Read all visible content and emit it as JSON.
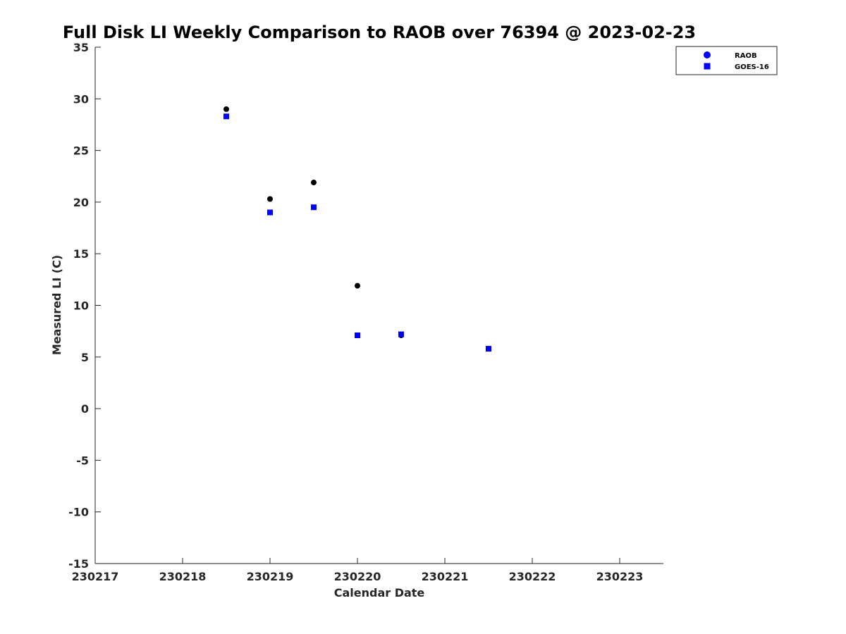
{
  "chart_data": {
    "type": "scatter",
    "title": "Full Disk LI Weekly Comparison to RAOB over 76394 @ 2023-02-23",
    "xlabel": "Calendar Date",
    "ylabel": "Measured LI (C)",
    "xlim": [
      230217,
      230223.5
    ],
    "ylim": [
      -15,
      35
    ],
    "x_ticks": [
      230217,
      230218,
      230219,
      230220,
      230221,
      230222,
      230223
    ],
    "x_tick_labels": [
      "230217",
      "230218",
      "230219",
      "230220",
      "230221",
      "230222",
      "230223"
    ],
    "y_ticks": [
      35,
      30,
      25,
      20,
      15,
      10,
      5,
      0,
      -5,
      -10,
      -15
    ],
    "y_tick_labels": [
      "35",
      "30",
      "25",
      "20",
      "15",
      "10",
      "5",
      "0",
      "-5",
      "-10",
      "-15"
    ],
    "grid": false,
    "legend_position": "top-right",
    "legend": [
      "RAOB",
      "GOES-16"
    ],
    "series": [
      {
        "name": "RAOB",
        "marker": "circle",
        "plot_color": "#000000",
        "legend_color": "#0000ff",
        "points": [
          {
            "x": 230218.5,
            "y": 29.0
          },
          {
            "x": 230219.0,
            "y": 20.3
          },
          {
            "x": 230219.5,
            "y": 21.9
          },
          {
            "x": 230220.0,
            "y": 11.9
          },
          {
            "x": 230220.5,
            "y": 7.1
          },
          {
            "x": 230221.5,
            "y": 5.8
          }
        ]
      },
      {
        "name": "GOES-16",
        "marker": "square",
        "plot_color": "#0000ff",
        "legend_color": "#0000ff",
        "points": [
          {
            "x": 230218.5,
            "y": 28.3
          },
          {
            "x": 230219.0,
            "y": 19.0
          },
          {
            "x": 230219.5,
            "y": 19.5
          },
          {
            "x": 230220.0,
            "y": 7.1
          },
          {
            "x": 230220.5,
            "y": 7.2
          },
          {
            "x": 230221.5,
            "y": 5.8
          }
        ]
      }
    ]
  }
}
